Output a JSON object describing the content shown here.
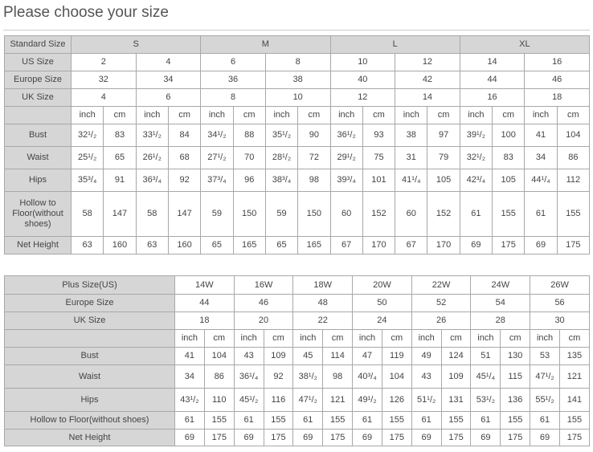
{
  "title": "Please choose your size",
  "standard_table": {
    "header": {
      "label": "Standard Size",
      "groups": [
        "S",
        "M",
        "L",
        "XL"
      ]
    },
    "size_rows": [
      {
        "label": "US Size",
        "values": [
          "2",
          "4",
          "6",
          "8",
          "10",
          "12",
          "14",
          "16"
        ]
      },
      {
        "label": "Europe Size",
        "values": [
          "32",
          "34",
          "36",
          "38",
          "40",
          "42",
          "44",
          "46"
        ]
      },
      {
        "label": "UK Size",
        "values": [
          "4",
          "6",
          "8",
          "10",
          "12",
          "14",
          "16",
          "18"
        ]
      }
    ],
    "units": [
      "inch",
      "cm"
    ],
    "measure_rows": [
      {
        "label": "Bust",
        "values": [
          "32¹/₂",
          "83",
          "33¹/₂",
          "84",
          "34¹/₂",
          "88",
          "35¹/₂",
          "90",
          "36¹/₂",
          "93",
          "38",
          "97",
          "39¹/₂",
          "100",
          "41",
          "104"
        ]
      },
      {
        "label": "Waist",
        "values": [
          "25¹/₂",
          "65",
          "26¹/₂",
          "68",
          "27¹/₂",
          "70",
          "28¹/₂",
          "72",
          "29¹/₂",
          "75",
          "31",
          "79",
          "32¹/₂",
          "83",
          "34",
          "86"
        ]
      },
      {
        "label": "Hips",
        "values": [
          "35³/₄",
          "91",
          "36³/₄",
          "92",
          "37³/₄",
          "96",
          "38³/₄",
          "98",
          "39³/₄",
          "101",
          "41¹/₄",
          "105",
          "42³/₄",
          "105",
          "44¹/₄",
          "112"
        ]
      },
      {
        "label": "Hollow to Floor(without shoes)",
        "values": [
          "58",
          "147",
          "58",
          "147",
          "59",
          "150",
          "59",
          "150",
          "60",
          "152",
          "60",
          "152",
          "61",
          "155",
          "61",
          "155"
        ]
      },
      {
        "label": "Net Height",
        "values": [
          "63",
          "160",
          "63",
          "160",
          "65",
          "165",
          "65",
          "165",
          "67",
          "170",
          "67",
          "170",
          "69",
          "175",
          "69",
          "175"
        ]
      }
    ]
  },
  "plus_table": {
    "size_rows": [
      {
        "label": "Plus Size(US)",
        "values": [
          "14W",
          "16W",
          "18W",
          "20W",
          "22W",
          "24W",
          "26W"
        ]
      },
      {
        "label": "Europe Size",
        "values": [
          "44",
          "46",
          "48",
          "50",
          "52",
          "54",
          "56"
        ]
      },
      {
        "label": "UK Size",
        "values": [
          "18",
          "20",
          "22",
          "24",
          "26",
          "28",
          "30"
        ]
      }
    ],
    "units": [
      "inch",
      "cm"
    ],
    "measure_rows": [
      {
        "label": "Bust",
        "values": [
          "41",
          "104",
          "43",
          "109",
          "45",
          "114",
          "47",
          "119",
          "49",
          "124",
          "51",
          "130",
          "53",
          "135"
        ]
      },
      {
        "label": "Waist",
        "values": [
          "34",
          "86",
          "36¹/₄",
          "92",
          "38¹/₂",
          "98",
          "40³/₄",
          "104",
          "43",
          "109",
          "45¹/₄",
          "115",
          "47¹/₂",
          "121"
        ]
      },
      {
        "label": "Hips",
        "values": [
          "43¹/₂",
          "110",
          "45¹/₂",
          "116",
          "47¹/₂",
          "121",
          "49¹/₂",
          "126",
          "51¹/₂",
          "131",
          "53¹/₂",
          "136",
          "55¹/₂",
          "141"
        ]
      },
      {
        "label": "Hollow to Floor(without shoes)",
        "values": [
          "61",
          "155",
          "61",
          "155",
          "61",
          "155",
          "61",
          "155",
          "61",
          "155",
          "61",
          "155",
          "61",
          "155"
        ]
      },
      {
        "label": "Net Height",
        "values": [
          "69",
          "175",
          "69",
          "175",
          "69",
          "175",
          "69",
          "175",
          "69",
          "175",
          "69",
          "175",
          "69",
          "175"
        ]
      }
    ]
  }
}
